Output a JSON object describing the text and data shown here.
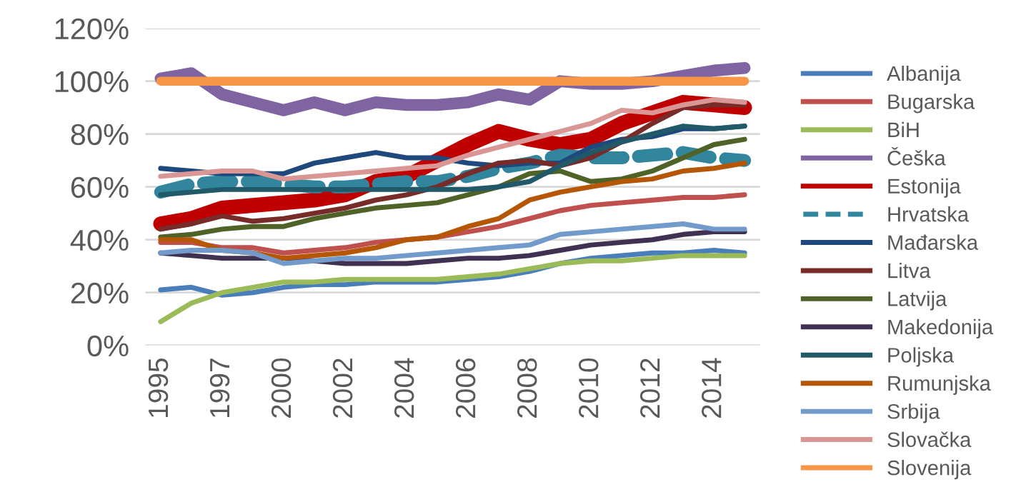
{
  "chart_data": {
    "type": "line",
    "categories": [
      "1995",
      null,
      "1997",
      null,
      "2000",
      null,
      "2002",
      null,
      "2004",
      null,
      "2006",
      null,
      "2008",
      null,
      "2010",
      null,
      "2012",
      null,
      "2014",
      null
    ],
    "ylim": [
      0,
      120
    ],
    "yticks": [
      {
        "value": 0,
        "label": "0%"
      },
      {
        "value": 20,
        "label": "20%"
      },
      {
        "value": 40,
        "label": "40%"
      },
      {
        "value": 60,
        "label": "60%"
      },
      {
        "value": 80,
        "label": "80%"
      },
      {
        "value": 100,
        "label": "100%"
      },
      {
        "value": 120,
        "label": "120%"
      }
    ],
    "grid": "y",
    "legend": "right",
    "marker": "none",
    "line_style": "solid",
    "series": [
      {
        "name": "Albanija",
        "color": "#4a7ebb",
        "values": [
          21,
          22,
          19,
          20,
          22,
          23,
          23,
          24,
          24,
          24,
          25,
          26,
          28,
          31,
          33,
          34,
          35,
          35,
          36,
          35
        ]
      },
      {
        "name": "Bugarska",
        "color": "#c0504d",
        "values": [
          39,
          39,
          37,
          37,
          35,
          36,
          37,
          39,
          40,
          41,
          43,
          45,
          48,
          51,
          53,
          54,
          55,
          56,
          56,
          57
        ]
      },
      {
        "name": "BiH",
        "color": "#9bbb59",
        "values": [
          9,
          16,
          20,
          22,
          24,
          24,
          25,
          25,
          25,
          25,
          26,
          27,
          29,
          31,
          32,
          32,
          33,
          34,
          34,
          34
        ]
      },
      {
        "name": "Češka",
        "color": "#8064a2",
        "values": [
          101,
          103,
          95,
          92,
          89,
          92,
          89,
          92,
          91,
          91,
          92,
          95,
          93,
          100,
          99,
          99,
          100,
          102,
          104,
          105
        ]
      },
      {
        "name": "Estonija",
        "color": "#c00000",
        "values": [
          46,
          48,
          52,
          53,
          54,
          55,
          57,
          62,
          64,
          70,
          76,
          81,
          78,
          76,
          78,
          84,
          88,
          92,
          91,
          90
        ]
      },
      {
        "name": "Hrvatska",
        "color": "#31859c",
        "line_style": "dashed",
        "values": [
          58,
          61,
          62,
          62,
          61,
          60,
          60,
          61,
          62,
          62,
          64,
          67,
          69,
          72,
          71,
          71,
          72,
          73,
          71,
          70
        ]
      },
      {
        "name": "Mađarska",
        "color": "#1f497d",
        "values": [
          67,
          66,
          65,
          65,
          65,
          69,
          71,
          73,
          71,
          71,
          69,
          68,
          69,
          69,
          75,
          78,
          79,
          82,
          82,
          83
        ]
      },
      {
        "name": "Litva",
        "color": "#772c2a",
        "values": [
          44,
          46,
          49,
          47,
          48,
          50,
          52,
          55,
          57,
          60,
          65,
          69,
          70,
          68,
          71,
          77,
          84,
          90,
          91,
          91
        ]
      },
      {
        "name": "Latvija",
        "color": "#4f6228",
        "values": [
          41,
          42,
          44,
          45,
          45,
          48,
          50,
          52,
          53,
          54,
          57,
          60,
          65,
          66,
          62,
          63,
          66,
          71,
          76,
          78
        ]
      },
      {
        "name": "Makedonija",
        "color": "#403152",
        "values": [
          35,
          34,
          33,
          33,
          33,
          32,
          31,
          31,
          31,
          32,
          33,
          33,
          34,
          36,
          38,
          39,
          40,
          42,
          43,
          43
        ]
      },
      {
        "name": "Poljska",
        "color": "#215968",
        "values": [
          57,
          58,
          59,
          59,
          59,
          59,
          59,
          59,
          59,
          59,
          59,
          60,
          62,
          68,
          73,
          77,
          80,
          83,
          82,
          83
        ]
      },
      {
        "name": "Rumunjska",
        "color": "#b65708",
        "values": [
          40,
          40,
          36,
          35,
          33,
          34,
          35,
          37,
          40,
          41,
          45,
          48,
          55,
          58,
          60,
          62,
          63,
          66,
          67,
          69
        ]
      },
      {
        "name": "Srbija",
        "color": "#729aca",
        "values": [
          35,
          36,
          36,
          35,
          31,
          32,
          33,
          33,
          34,
          35,
          36,
          37,
          38,
          42,
          43,
          44,
          45,
          46,
          44,
          44
        ]
      },
      {
        "name": "Slovačka",
        "color": "#d99694",
        "values": [
          64,
          65,
          66,
          66,
          63,
          64,
          65,
          66,
          67,
          68,
          72,
          75,
          78,
          81,
          84,
          89,
          88,
          91,
          93,
          92
        ]
      },
      {
        "name": "Slovenija",
        "color": "#f79646",
        "values": [
          100,
          100,
          100,
          100,
          100,
          100,
          100,
          100,
          100,
          100,
          100,
          100,
          100,
          100,
          100,
          100,
          100,
          100,
          100,
          100
        ]
      }
    ]
  }
}
